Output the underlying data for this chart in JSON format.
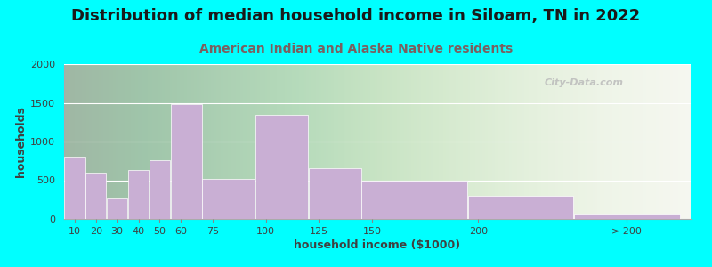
{
  "title": "Distribution of median household income in Siloam, TN in 2022",
  "subtitle": "American Indian and Alaska Native residents",
  "xlabel": "household income ($1000)",
  "ylabel": "households",
  "background_outer": "#00FFFF",
  "background_inner_right": "#f5f5ee",
  "bar_color": "#c9afd4",
  "bar_edge_color": "#ffffff",
  "values": [
    800,
    600,
    260,
    630,
    760,
    1480,
    520,
    1350,
    660,
    500,
    300,
    60
  ],
  "bar_widths": [
    10,
    10,
    10,
    10,
    10,
    15,
    25,
    25,
    25,
    50,
    50,
    50
  ],
  "bar_lefts": [
    5,
    15,
    25,
    35,
    45,
    55,
    70,
    95,
    120,
    145,
    195,
    245
  ],
  "xlim": [
    5,
    300
  ],
  "ylim": [
    0,
    2000
  ],
  "yticks": [
    0,
    500,
    1000,
    1500,
    2000
  ],
  "xtick_positions": [
    10,
    20,
    30,
    40,
    50,
    60,
    75,
    100,
    125,
    150,
    200,
    270
  ],
  "xtick_labels": [
    "10",
    "20",
    "30",
    "40",
    "50",
    "60",
    "75",
    "100",
    "125",
    "150",
    "200",
    "> 200"
  ],
  "title_fontsize": 13,
  "subtitle_fontsize": 10,
  "axis_label_fontsize": 9,
  "tick_fontsize": 8,
  "watermark": "City-Data.com",
  "title_color": "#1a1a1a",
  "subtitle_color": "#7a6060",
  "tick_color": "#404040",
  "ylabel_color": "#404040",
  "xlabel_color": "#404040"
}
